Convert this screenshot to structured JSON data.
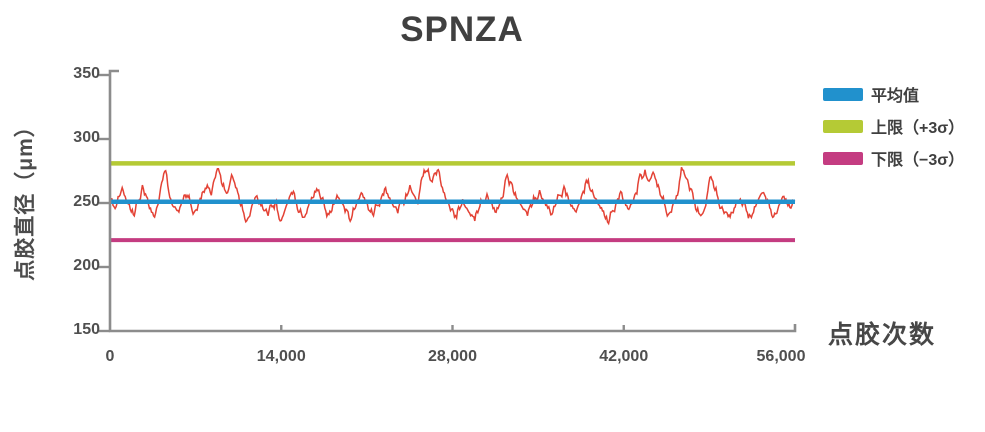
{
  "title": "SPNZA",
  "colors": {
    "axis": "#8c8c8c",
    "tick_text": "#4f4f4f",
    "title_text": "#404040",
    "data_line": "#e2382a",
    "mean_line": "#2191cd",
    "upper_line": "#b5ca35",
    "lower_line": "#c43c81"
  },
  "chart_data": {
    "type": "line",
    "title": "SPNZA",
    "xlabel": "点胶次数",
    "ylabel": "点胶直径（μm）",
    "xlim": [
      0,
      56000
    ],
    "ylim": [
      150,
      350
    ],
    "x_ticks": [
      0,
      14000,
      28000,
      42000,
      56000
    ],
    "x_tick_labels": [
      "0",
      "14,000",
      "28,000",
      "42,000",
      "56,000"
    ],
    "y_ticks": [
      150,
      200,
      250,
      300,
      350
    ],
    "y_tick_labels": [
      "150",
      "200",
      "250",
      "300",
      "350"
    ],
    "grid": false,
    "legend_position": "right",
    "reference_lines": [
      {
        "name": "平均值",
        "value": 251,
        "color": "#2191cd"
      },
      {
        "name": "上限（+3σ）",
        "value": 281,
        "color": "#b5ca35"
      },
      {
        "name": "下限（−3σ）",
        "value": 221,
        "color": "#c43c81"
      }
    ],
    "series": [
      {
        "name": "点胶直径",
        "color": "#e2382a",
        "x_start": 0,
        "x_end": 56000,
        "values": [
          250,
          247,
          255,
          262,
          252,
          245,
          240,
          252,
          264,
          255,
          246,
          239,
          250,
          268,
          272,
          253,
          247,
          243,
          252,
          256,
          248,
          244,
          251,
          259,
          264,
          256,
          270,
          274,
          265,
          258,
          272,
          262,
          250,
          242,
          238,
          248,
          255,
          250,
          244,
          240,
          247,
          252,
          236,
          243,
          251,
          257,
          250,
          245,
          239,
          248,
          254,
          261,
          253,
          246,
          241,
          249,
          256,
          250,
          243,
          238,
          246,
          252,
          258,
          251,
          244,
          240,
          248,
          255,
          262,
          254,
          247,
          242,
          250,
          257,
          264,
          256,
          249,
          270,
          275,
          268,
          273,
          276,
          262,
          252,
          244,
          239,
          247,
          253,
          246,
          240,
          236,
          245,
          251,
          257,
          250,
          243,
          248,
          255,
          272,
          266,
          258,
          251,
          245,
          240,
          247,
          254,
          260,
          252,
          246,
          241,
          249,
          256,
          263,
          255,
          248,
          243,
          250,
          258,
          268,
          260,
          253,
          246,
          240,
          234,
          244,
          252,
          259,
          251,
          245,
          250,
          257,
          272,
          276,
          267,
          274,
          263,
          255,
          247,
          242,
          250,
          256,
          278,
          270,
          260,
          252,
          246,
          241,
          248,
          270,
          262,
          254,
          247,
          243,
          239,
          246,
          252,
          248,
          244,
          240,
          247,
          253,
          258,
          250,
          245,
          242,
          248,
          255,
          250,
          246,
          252
        ]
      }
    ]
  }
}
